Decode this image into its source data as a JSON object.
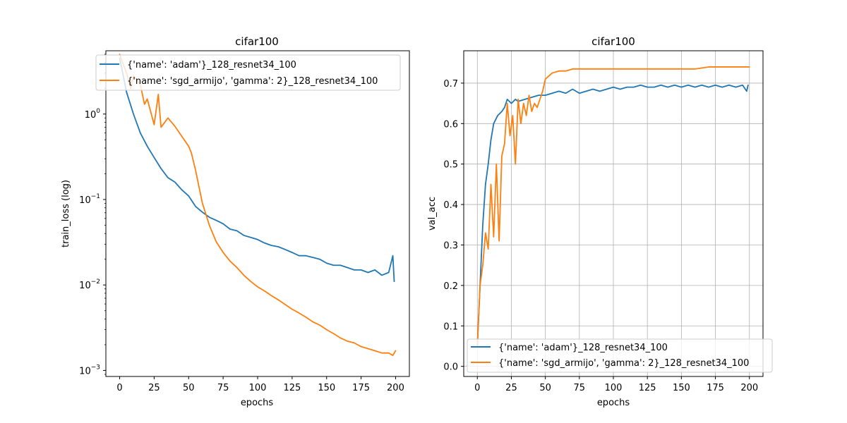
{
  "colors": {
    "adam": "#1f77b4",
    "sgd": "#ff7f0e",
    "grid": "#b0b0b0",
    "axes": "#000000",
    "background": "#ffffff"
  },
  "chart_data": [
    {
      "type": "line",
      "title": "cifar100",
      "xlabel": "epochs",
      "ylabel": "train_loss (log)",
      "yscale": "log",
      "grid": false,
      "xlim": [
        -10,
        210
      ],
      "ylim": [
        0.00085,
        5.5
      ],
      "xticks": [
        0,
        25,
        50,
        75,
        100,
        125,
        150,
        175,
        200
      ],
      "yticks": [
        {
          "value": 0.001,
          "base": "10",
          "exp": "−3"
        },
        {
          "value": 0.01,
          "base": "10",
          "exp": "−2"
        },
        {
          "value": 0.1,
          "base": "10",
          "exp": "−1"
        },
        {
          "value": 1,
          "base": "10",
          "exp": "0"
        }
      ],
      "legend_position": "top-left",
      "series": [
        {
          "name": "{'name': 'adam'}_128_resnet34_100",
          "color_key": "adam",
          "x": [
            0,
            5,
            10,
            15,
            20,
            25,
            30,
            35,
            40,
            45,
            50,
            55,
            60,
            65,
            70,
            75,
            80,
            85,
            90,
            95,
            100,
            105,
            110,
            115,
            120,
            125,
            130,
            135,
            140,
            145,
            150,
            155,
            160,
            165,
            170,
            175,
            180,
            185,
            190,
            195,
            198,
            199
          ],
          "y": [
            4.5,
            1.8,
            1.0,
            0.6,
            0.42,
            0.31,
            0.23,
            0.18,
            0.16,
            0.13,
            0.11,
            0.083,
            0.071,
            0.062,
            0.057,
            0.052,
            0.045,
            0.043,
            0.038,
            0.036,
            0.034,
            0.031,
            0.029,
            0.028,
            0.026,
            0.024,
            0.022,
            0.022,
            0.021,
            0.02,
            0.018,
            0.017,
            0.017,
            0.016,
            0.015,
            0.015,
            0.014,
            0.015,
            0.013,
            0.014,
            0.022,
            0.011
          ]
        },
        {
          "name": "{'name': 'sgd_armijo', 'gamma': 2}_128_resnet34_100",
          "color_key": "sgd",
          "x": [
            0,
            5,
            8,
            10,
            15,
            18,
            20,
            25,
            28,
            30,
            35,
            40,
            45,
            50,
            52,
            55,
            60,
            65,
            70,
            75,
            80,
            85,
            90,
            95,
            100,
            105,
            110,
            115,
            120,
            125,
            130,
            135,
            140,
            145,
            150,
            155,
            160,
            165,
            170,
            175,
            180,
            185,
            190,
            195,
            198,
            200
          ],
          "y": [
            5.0,
            3.0,
            2.0,
            2.8,
            2.2,
            1.3,
            1.5,
            0.75,
            1.7,
            0.7,
            0.9,
            0.72,
            0.55,
            0.42,
            0.35,
            0.22,
            0.09,
            0.05,
            0.032,
            0.024,
            0.019,
            0.016,
            0.013,
            0.011,
            0.0095,
            0.0085,
            0.0075,
            0.0067,
            0.0059,
            0.0052,
            0.0047,
            0.0042,
            0.0037,
            0.0034,
            0.003,
            0.0027,
            0.0024,
            0.0022,
            0.0021,
            0.0019,
            0.0018,
            0.0017,
            0.0016,
            0.0016,
            0.0015,
            0.0017
          ]
        }
      ]
    },
    {
      "type": "line",
      "title": "cifar100",
      "xlabel": "epochs",
      "ylabel": "val_acc",
      "grid": true,
      "xlim": [
        -10,
        210
      ],
      "ylim": [
        -0.025,
        0.78
      ],
      "xticks": [
        0,
        25,
        50,
        75,
        100,
        125,
        150,
        175,
        200
      ],
      "yticks": [
        0.0,
        0.1,
        0.2,
        0.3,
        0.4,
        0.5,
        0.6,
        0.7
      ],
      "legend_position": "bottom-left",
      "series": [
        {
          "name": "{'name': 'adam'}_128_resnet34_100",
          "color_key": "adam",
          "x": [
            0,
            2,
            4,
            6,
            8,
            10,
            12,
            15,
            18,
            20,
            22,
            25,
            28,
            30,
            35,
            40,
            45,
            50,
            55,
            60,
            65,
            70,
            75,
            80,
            85,
            90,
            95,
            100,
            105,
            110,
            115,
            120,
            125,
            130,
            135,
            140,
            145,
            150,
            155,
            160,
            165,
            170,
            175,
            180,
            185,
            190,
            195,
            198,
            199
          ],
          "y": [
            0.05,
            0.2,
            0.35,
            0.45,
            0.5,
            0.56,
            0.6,
            0.62,
            0.63,
            0.64,
            0.66,
            0.65,
            0.66,
            0.655,
            0.66,
            0.665,
            0.67,
            0.67,
            0.675,
            0.68,
            0.675,
            0.685,
            0.675,
            0.68,
            0.685,
            0.68,
            0.685,
            0.69,
            0.685,
            0.69,
            0.69,
            0.695,
            0.69,
            0.69,
            0.695,
            0.69,
            0.695,
            0.69,
            0.695,
            0.69,
            0.695,
            0.69,
            0.695,
            0.69,
            0.695,
            0.69,
            0.695,
            0.68,
            0.695
          ]
        },
        {
          "name": "{'name': 'sgd_armijo', 'gamma': 2}_128_resnet34_100",
          "color_key": "sgd",
          "x": [
            0,
            2,
            4,
            6,
            8,
            10,
            12,
            14,
            16,
            18,
            20,
            22,
            24,
            26,
            28,
            30,
            32,
            34,
            36,
            38,
            40,
            42,
            44,
            46,
            48,
            50,
            55,
            60,
            65,
            70,
            75,
            80,
            85,
            90,
            95,
            100,
            110,
            120,
            130,
            140,
            150,
            160,
            170,
            180,
            190,
            195,
            200
          ],
          "y": [
            0.05,
            0.2,
            0.25,
            0.33,
            0.29,
            0.45,
            0.32,
            0.5,
            0.31,
            0.52,
            0.55,
            0.65,
            0.57,
            0.62,
            0.5,
            0.66,
            0.6,
            0.65,
            0.62,
            0.67,
            0.63,
            0.65,
            0.64,
            0.66,
            0.68,
            0.71,
            0.725,
            0.73,
            0.73,
            0.735,
            0.735,
            0.735,
            0.735,
            0.735,
            0.735,
            0.735,
            0.735,
            0.735,
            0.735,
            0.735,
            0.735,
            0.735,
            0.74,
            0.74,
            0.74,
            0.74,
            0.74
          ]
        }
      ]
    }
  ]
}
